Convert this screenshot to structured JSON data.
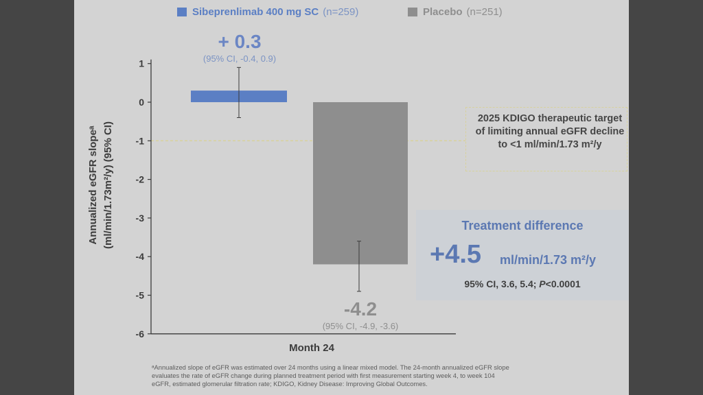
{
  "legend": {
    "items": [
      {
        "name": "Sibeprenlimab 400 mg SC",
        "n": "(n=259)",
        "color": "#5b7fc4"
      },
      {
        "name": "Placebo",
        "n": "(n=251)",
        "color": "#8e8e8e"
      }
    ]
  },
  "chart_data": {
    "type": "bar",
    "categories": [
      "Month 24"
    ],
    "series": [
      {
        "name": "Sibeprenlimab 400 mg SC",
        "value": 0.3,
        "ci": [
          -0.4,
          0.9
        ],
        "color": "#5b7fc4",
        "value_label": "+ 0.3",
        "ci_label": "(95% CI, -0.4, 0.9)"
      },
      {
        "name": "Placebo",
        "value": -4.2,
        "ci": [
          -4.9,
          -3.6
        ],
        "color": "#8e8e8e",
        "value_label": "-4.2",
        "ci_label": "(95% CI, -4.9, -3.6)"
      }
    ],
    "ylabel_line1": "Annualized eGFR slopeᵃ",
    "ylabel_line2": "(ml/min/1.73m²/y) (95% CI)",
    "xlabel": "Month 24",
    "ylim": [
      -6,
      1
    ],
    "yticks": [
      1,
      0,
      -1,
      -2,
      -3,
      -4,
      -5,
      -6
    ],
    "reference_line": -1,
    "reference_color": "#d8d29c"
  },
  "kdigo": {
    "text": "2025 KDIGO therapeutic target of limiting annual eGFR decline to <1 ml/min/1.73 m²/y"
  },
  "difference": {
    "title": "Treatment difference",
    "value": "+4.5",
    "unit": "ml/min/1.73 m²/y",
    "ci_prefix": "95% CI, 3.6, 5.4; ",
    "p_label": "P",
    "p_value": "<0.0001"
  },
  "footnote": {
    "line1": "ᵃAnnualized slope of eGFR was estimated over 24 months using a linear mixed model. The 24-month annualized eGFR slope",
    "line2": "evaluates the rate of eGFR change during planned treatment period with first measurement starting week 4, to week 104",
    "line3": "eGFR, estimated glomerular filtration rate; KDIGO, Kidney Disease: Improving Global Outcomes."
  }
}
